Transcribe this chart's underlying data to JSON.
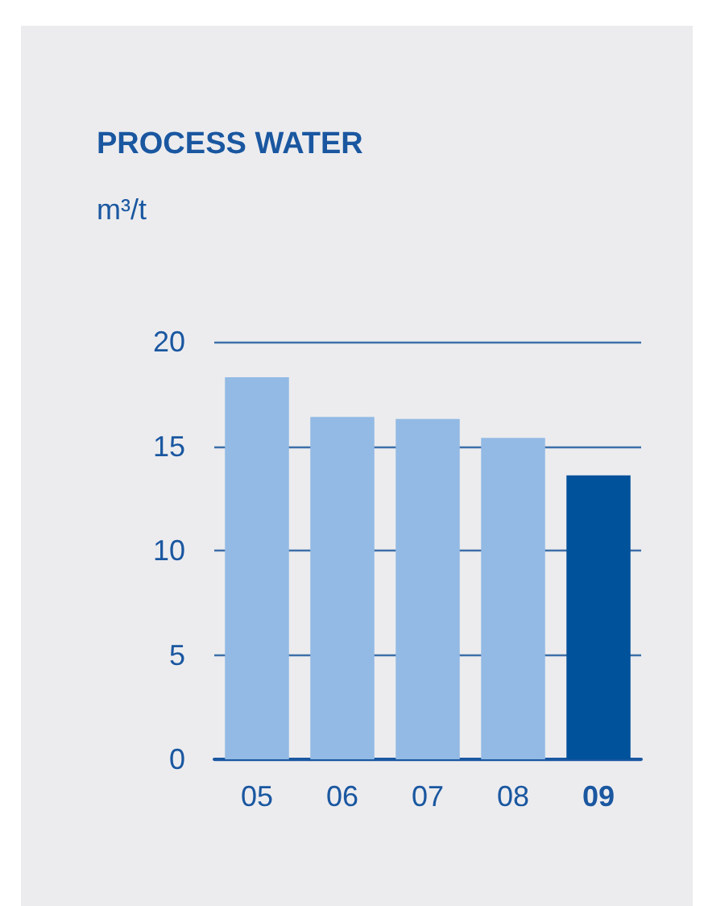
{
  "chart_data": {
    "type": "bar",
    "title": "PROCESS WATER",
    "ylabel": "m³/t",
    "categories": [
      "05",
      "06",
      "07",
      "08",
      "09"
    ],
    "values": [
      18.3,
      16.4,
      16.3,
      15.4,
      13.6
    ],
    "colors": [
      "#93bae4",
      "#93bae4",
      "#93bae4",
      "#93bae4",
      "#00529b"
    ],
    "ylim": [
      0,
      20
    ],
    "yticks": [
      0,
      5,
      10,
      15,
      20
    ],
    "grid": "y"
  }
}
